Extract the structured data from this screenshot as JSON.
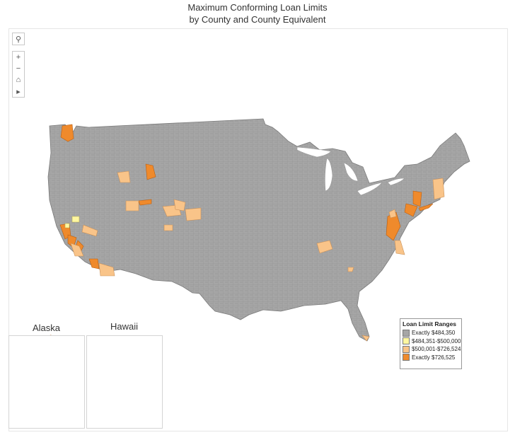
{
  "title": {
    "line1": "Maximum Conforming Loan Limits",
    "line2": "by County and County Equivalent"
  },
  "controls": {
    "search": "search-icon",
    "zoom_in": "+",
    "zoom_out": "−",
    "home": "home-icon",
    "expand": "play-icon"
  },
  "insets": {
    "alaska_label": "Alaska",
    "hawaii_label": "Hawaii"
  },
  "legend": {
    "title": "Loan Limit Ranges",
    "items": [
      {
        "label": "Exactly $484,350",
        "color": "#a6a6a6"
      },
      {
        "label": "$484,351-$500,000",
        "color": "#fff7a0"
      },
      {
        "label": "$500,001-$726,524",
        "color": "#f9c489"
      },
      {
        "label": "Exactly $726,525",
        "color": "#ef8a2c"
      }
    ]
  },
  "colors": {
    "base": "#a6a6a6",
    "border": "#8c8c8c",
    "low": "#fff7a0",
    "mid": "#f9c489",
    "high": "#ef8a2c"
  }
}
